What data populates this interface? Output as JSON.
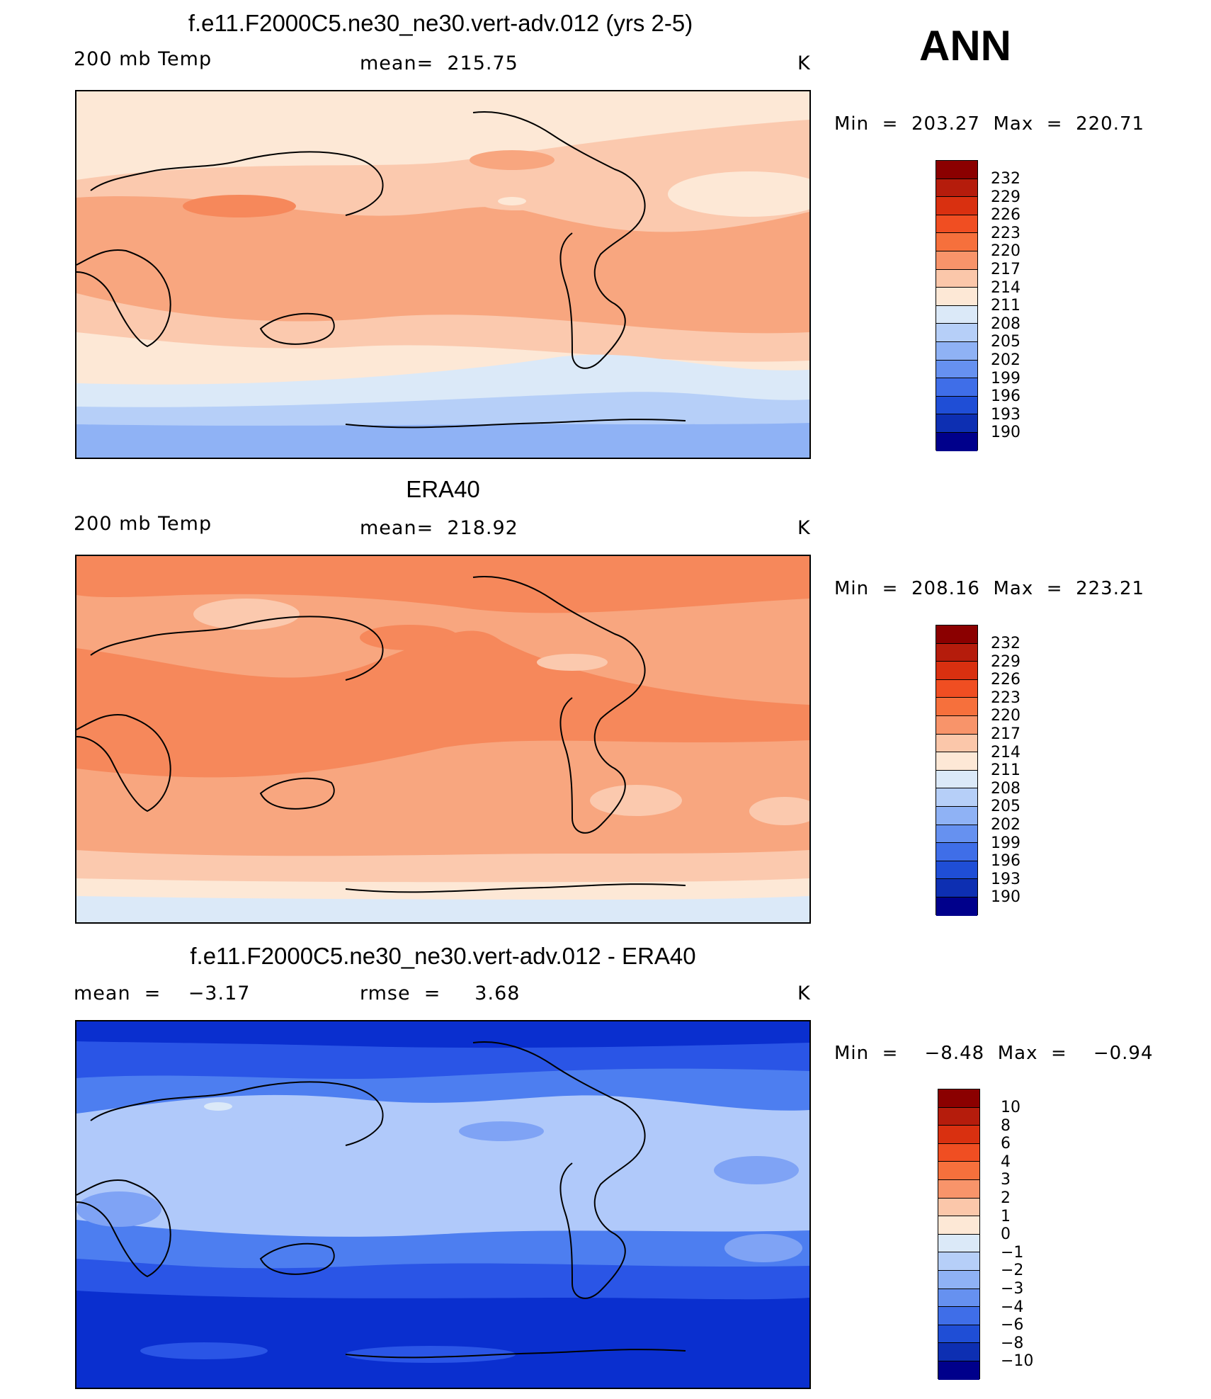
{
  "season": "ANN",
  "panels": [
    {
      "title": "f.e11.F2000C5.ne30_ne30.vert-adv.012 (yrs 2-5)",
      "left": "200 mb Temp",
      "center": "mean=  215.75",
      "unit": "K",
      "minmax": "Min  =  203.27  Max  =  220.71",
      "colorbar_labels": [
        "232",
        "229",
        "226",
        "223",
        "220",
        "217",
        "214",
        "211",
        "208",
        "205",
        "202",
        "199",
        "196",
        "193",
        "190"
      ],
      "band_colors": [
        "#fde8d6",
        "#fbc9ae",
        "#f8a67f",
        "#f6885b"
      ]
    },
    {
      "title": "ERA40",
      "left": "200 mb Temp",
      "center": "mean=  218.92",
      "unit": "K",
      "minmax": "Min  =  208.16  Max  =  223.21",
      "colorbar_labels": [
        "232",
        "229",
        "226",
        "223",
        "220",
        "217",
        "214",
        "211",
        "208",
        "205",
        "202",
        "199",
        "196",
        "193",
        "190"
      ],
      "band_colors": [
        "#dbe9f8",
        "#fde8d6",
        "#f8a67f",
        "#f6885b",
        "#f26b37"
      ]
    },
    {
      "title": "f.e11.F2000C5.ne30_ne30.vert-adv.012 - ERA40",
      "left": "mean  =    −3.17",
      "center": "rmse  =     3.68",
      "unit": "K",
      "minmax": "Min  =    −8.48  Max  =    −0.94",
      "colorbar_labels": [
        "10",
        "8",
        "6",
        "4",
        "3",
        "2",
        "1",
        "0",
        "−1",
        "−2",
        "−3",
        "−4",
        "−6",
        "−8",
        "−10"
      ],
      "band_colors": [
        "#0a2fcf",
        "#2a55e6",
        "#4d7ef0",
        "#7fa3f5",
        "#b0c9fa"
      ]
    }
  ],
  "colorbar_colors": [
    "#8b0000",
    "#b51c0c",
    "#d93010",
    "#f04e22",
    "#f6703c",
    "#f8946a",
    "#fbc7aa",
    "#fde8d6",
    "#dbe9f8",
    "#b6cff8",
    "#8fb2f5",
    "#6691f0",
    "#3f6ee8",
    "#1f4ed6",
    "#0d2fb2",
    "#00008b"
  ]
}
